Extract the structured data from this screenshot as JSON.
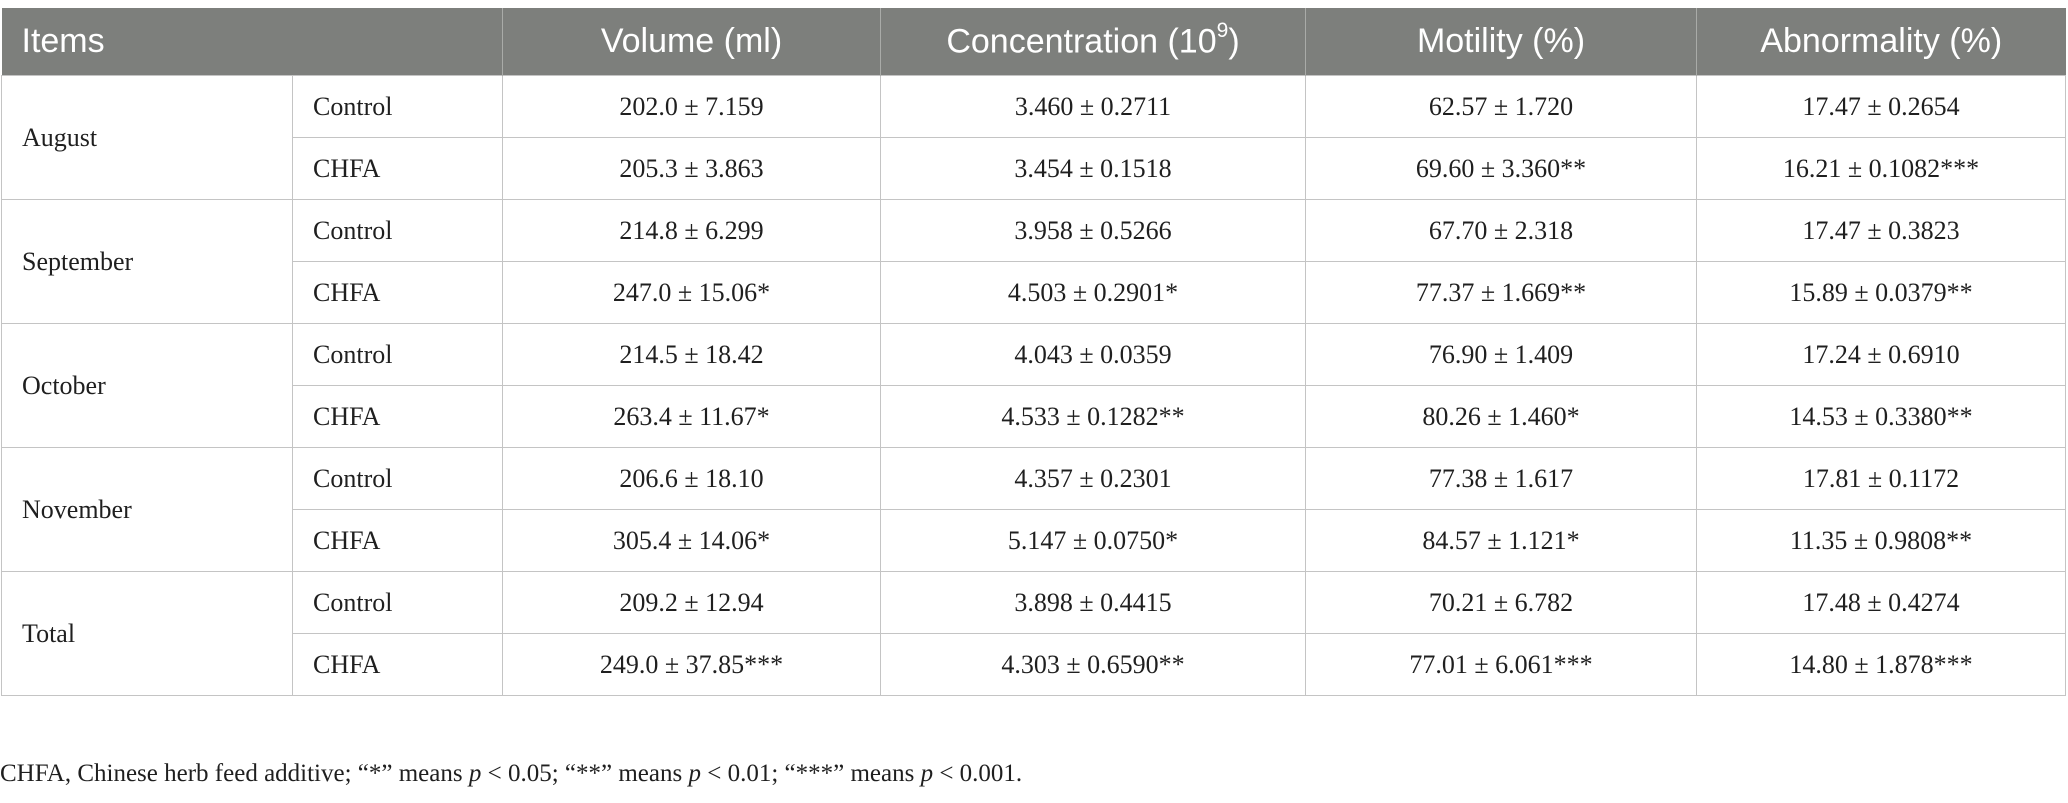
{
  "table": {
    "headers": {
      "items": "Items",
      "volume": "Volume (ml)",
      "concentration": "Concentration (10",
      "concentration_exp": "9",
      "concentration_close": ")",
      "motility": "Motility (%)",
      "abnormality": "Abnormality (%)"
    },
    "groups": [
      {
        "month": "August",
        "rows": [
          {
            "group": "Control",
            "volume": "202.0 ± 7.159",
            "concentration": "3.460 ± 0.2711",
            "motility": "62.57 ± 1.720",
            "abnormality": "17.47 ± 0.2654"
          },
          {
            "group": "CHFA",
            "volume": "205.3 ± 3.863",
            "concentration": "3.454 ± 0.1518",
            "motility": "69.60 ± 3.360**",
            "abnormality": "16.21 ± 0.1082***"
          }
        ]
      },
      {
        "month": "September",
        "rows": [
          {
            "group": "Control",
            "volume": "214.8 ± 6.299",
            "concentration": "3.958 ± 0.5266",
            "motility": "67.70 ± 2.318",
            "abnormality": "17.47 ± 0.3823"
          },
          {
            "group": "CHFA",
            "volume": "247.0 ± 15.06*",
            "concentration": "4.503 ± 0.2901*",
            "motility": "77.37 ± 1.669**",
            "abnormality": "15.89 ± 0.0379**"
          }
        ]
      },
      {
        "month": "October",
        "rows": [
          {
            "group": "Control",
            "volume": "214.5 ± 18.42",
            "concentration": "4.043 ± 0.0359",
            "motility": "76.90 ± 1.409",
            "abnormality": "17.24 ± 0.6910"
          },
          {
            "group": "CHFA",
            "volume": "263.4 ± 11.67*",
            "concentration": "4.533 ± 0.1282**",
            "motility": "80.26 ± 1.460*",
            "abnormality": "14.53 ± 0.3380**"
          }
        ]
      },
      {
        "month": "November",
        "rows": [
          {
            "group": "Control",
            "volume": "206.6 ± 18.10",
            "concentration": "4.357 ± 0.2301",
            "motility": "77.38 ± 1.617",
            "abnormality": "17.81 ± 0.1172"
          },
          {
            "group": "CHFA",
            "volume": "305.4 ± 14.06*",
            "concentration": "5.147 ± 0.0750*",
            "motility": "84.57 ± 1.121*",
            "abnormality": "11.35 ± 0.9808**"
          }
        ]
      },
      {
        "month": "Total",
        "rows": [
          {
            "group": "Control",
            "volume": "209.2 ± 12.94",
            "concentration": "3.898 ± 0.4415",
            "motility": "70.21 ± 6.782",
            "abnormality": "17.48 ± 0.4274"
          },
          {
            "group": "CHFA",
            "volume": "249.0 ± 37.85***",
            "concentration": "4.303 ± 0.6590**",
            "motility": "77.01 ± 6.061***",
            "abnormality": "14.80 ± 1.878***"
          }
        ]
      }
    ]
  },
  "footnote": {
    "part1": "CHFA, Chinese herb feed additive; “*” means ",
    "p1": "p",
    "part2": " < 0.05; “**” means ",
    "p2": "p",
    "part3": " < 0.01; “***” means ",
    "p3": "p",
    "part4": " < 0.001."
  },
  "colors": {
    "header_bg": "#7d7f7c",
    "header_text": "#ffffff",
    "grid_line": "#c4c4c4"
  }
}
